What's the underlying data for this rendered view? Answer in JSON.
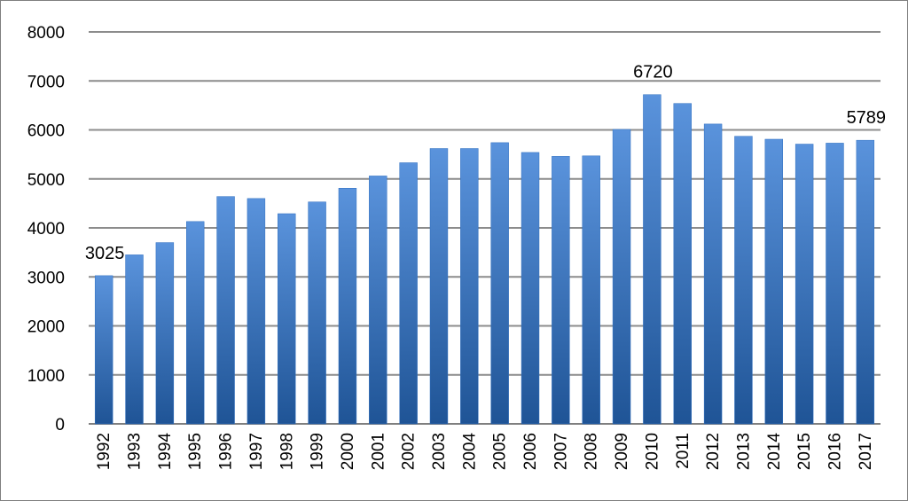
{
  "chart_data": {
    "type": "bar",
    "title": "",
    "xlabel": "",
    "ylabel": "",
    "ylim": [
      0,
      8000
    ],
    "y_ticks": [
      0,
      1000,
      2000,
      3000,
      4000,
      5000,
      6000,
      7000,
      8000
    ],
    "grid": true,
    "legend": "none",
    "categories": [
      "1992",
      "1993",
      "1994",
      "1995",
      "1996",
      "1997",
      "1998",
      "1999",
      "2000",
      "2001",
      "2002",
      "2003",
      "2004",
      "2005",
      "2006",
      "2007",
      "2008",
      "2009",
      "2010",
      "2011",
      "2012",
      "2013",
      "2014",
      "2015",
      "2016",
      "2017"
    ],
    "values": [
      3025,
      3450,
      3700,
      4130,
      4640,
      4600,
      4290,
      4530,
      4810,
      5060,
      5330,
      5620,
      5620,
      5740,
      5540,
      5460,
      5470,
      6010,
      6720,
      6540,
      6120,
      5870,
      5810,
      5710,
      5730,
      5789
    ],
    "data_labels": [
      {
        "category": "1992",
        "text": "3025"
      },
      {
        "category": "2010",
        "text": "6720"
      },
      {
        "category": "2017",
        "text": "5789"
      }
    ],
    "colors": {
      "bar_top": "#5a93dc",
      "bar_bottom": "#1f5496",
      "bar_edge": "#2f6fc0",
      "grid": "#8c8c8c",
      "axis": "#7f7f7f"
    }
  }
}
